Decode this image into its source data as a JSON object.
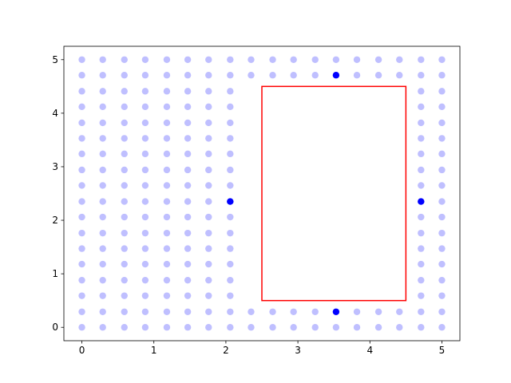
{
  "chart_data": {
    "type": "scatter",
    "xlim": [
      -0.25,
      5.25
    ],
    "ylim": [
      -0.25,
      5.25
    ],
    "xticks": [
      0,
      1,
      2,
      3,
      4,
      5
    ],
    "yticks": [
      0,
      1,
      2,
      3,
      4,
      5
    ],
    "grid": false,
    "series": [
      {
        "color": "#0000ff",
        "alpha": 0.25,
        "x": [
          0,
          0.29,
          0.59,
          0.88,
          1.18,
          1.47,
          1.76,
          2.06,
          2.35,
          2.65,
          2.94,
          3.24,
          3.53,
          3.82,
          4.12,
          4.41,
          4.71,
          5,
          0,
          0.29,
          0.59,
          0.88,
          1.18,
          1.47,
          1.76,
          2.06,
          2.35,
          2.65,
          2.94,
          3.24,
          3.82,
          4.12,
          4.41,
          4.71,
          5,
          0,
          0.29,
          0.59,
          0.88,
          1.18,
          1.47,
          1.76,
          2.06,
          4.71,
          5,
          0,
          0.29,
          0.59,
          0.88,
          1.18,
          1.47,
          1.76,
          2.06,
          4.71,
          5,
          0,
          0.29,
          0.59,
          0.88,
          1.18,
          1.47,
          1.76,
          2.06,
          4.71,
          5,
          0,
          0.29,
          0.59,
          0.88,
          1.18,
          1.47,
          1.76,
          2.06,
          4.71,
          5,
          0,
          0.29,
          0.59,
          0.88,
          1.18,
          1.47,
          1.76,
          2.06,
          4.71,
          5,
          0,
          0.29,
          0.59,
          0.88,
          1.18,
          1.47,
          1.76,
          2.06,
          4.71,
          5,
          0,
          0.29,
          0.59,
          0.88,
          1.18,
          1.47,
          1.76,
          5,
          0,
          0.29,
          0.59,
          0.88,
          1.18,
          1.47,
          1.76,
          2.06,
          4.71,
          5,
          0,
          0.29,
          0.59,
          0.88,
          1.18,
          1.47,
          1.76,
          2.06,
          4.71,
          5,
          0,
          0.29,
          0.59,
          0.88,
          1.18,
          1.47,
          1.76,
          2.06,
          4.71,
          5,
          0,
          0.29,
          0.59,
          0.88,
          1.18,
          1.47,
          1.76,
          2.06,
          4.71,
          5,
          0,
          0.29,
          0.59,
          0.88,
          1.18,
          1.47,
          1.76,
          2.06,
          4.71,
          5,
          0,
          0.29,
          0.59,
          0.88,
          1.18,
          1.47,
          1.76,
          2.06,
          4.71,
          5,
          0,
          0.29,
          0.59,
          0.88,
          1.18,
          1.47,
          1.76,
          2.06,
          4.71,
          5,
          0,
          0.29,
          0.59,
          0.88,
          1.18,
          1.47,
          1.76,
          2.06,
          2.35,
          2.65,
          2.94,
          3.24,
          3.82,
          4.12,
          4.41,
          4.71,
          5,
          0,
          0.29,
          0.59,
          0.88,
          1.18,
          1.47,
          1.76,
          2.06,
          2.35,
          2.65,
          2.94,
          3.24,
          3.53,
          3.82,
          4.12,
          4.41,
          4.71,
          5
        ],
        "values": [
          0,
          0,
          0,
          0,
          0,
          0,
          0,
          0,
          0,
          0,
          0,
          0,
          0,
          0,
          0,
          0,
          0,
          0,
          0.29,
          0.29,
          0.29,
          0.29,
          0.29,
          0.29,
          0.29,
          0.29,
          0.29,
          0.29,
          0.29,
          0.29,
          0.29,
          0.29,
          0.29,
          0.29,
          0.29,
          0.59,
          0.59,
          0.59,
          0.59,
          0.59,
          0.59,
          0.59,
          0.59,
          0.59,
          0.59,
          0.88,
          0.88,
          0.88,
          0.88,
          0.88,
          0.88,
          0.88,
          0.88,
          0.88,
          0.88,
          1.18,
          1.18,
          1.18,
          1.18,
          1.18,
          1.18,
          1.18,
          1.18,
          1.18,
          1.18,
          1.47,
          1.47,
          1.47,
          1.47,
          1.47,
          1.47,
          1.47,
          1.47,
          1.47,
          1.47,
          1.76,
          1.76,
          1.76,
          1.76,
          1.76,
          1.76,
          1.76,
          1.76,
          1.76,
          1.76,
          2.06,
          2.06,
          2.06,
          2.06,
          2.06,
          2.06,
          2.06,
          2.06,
          2.06,
          2.06,
          2.35,
          2.35,
          2.35,
          2.35,
          2.35,
          2.35,
          2.35,
          2.35,
          2.65,
          2.65,
          2.65,
          2.65,
          2.65,
          2.65,
          2.65,
          2.65,
          2.65,
          2.65,
          2.94,
          2.94,
          2.94,
          2.94,
          2.94,
          2.94,
          2.94,
          2.94,
          2.94,
          2.94,
          3.24,
          3.24,
          3.24,
          3.24,
          3.24,
          3.24,
          3.24,
          3.24,
          3.24,
          3.24,
          3.53,
          3.53,
          3.53,
          3.53,
          3.53,
          3.53,
          3.53,
          3.53,
          3.53,
          3.53,
          3.82,
          3.82,
          3.82,
          3.82,
          3.82,
          3.82,
          3.82,
          3.82,
          3.82,
          3.82,
          4.12,
          4.12,
          4.12,
          4.12,
          4.12,
          4.12,
          4.12,
          4.12,
          4.12,
          4.12,
          4.41,
          4.41,
          4.41,
          4.41,
          4.41,
          4.41,
          4.41,
          4.41,
          4.41,
          4.41,
          4.71,
          4.71,
          4.71,
          4.71,
          4.71,
          4.71,
          4.71,
          4.71,
          4.71,
          4.71,
          4.71,
          4.71,
          4.71,
          4.71,
          4.71,
          4.71,
          4.71,
          5,
          5,
          5,
          5,
          5,
          5,
          5,
          5,
          5,
          5,
          5,
          5,
          5,
          5,
          5,
          5,
          5,
          5
        ]
      },
      {
        "color": "#0000ff",
        "alpha": 1,
        "x": [
          3.53,
          2.06,
          4.71,
          3.53
        ],
        "values": [
          4.71,
          2.35,
          2.35,
          0.29
        ]
      }
    ],
    "rectangle": {
      "x": [
        2.5,
        4.5
      ],
      "y": [
        0.5,
        4.5
      ],
      "color": "#ff0000"
    }
  }
}
